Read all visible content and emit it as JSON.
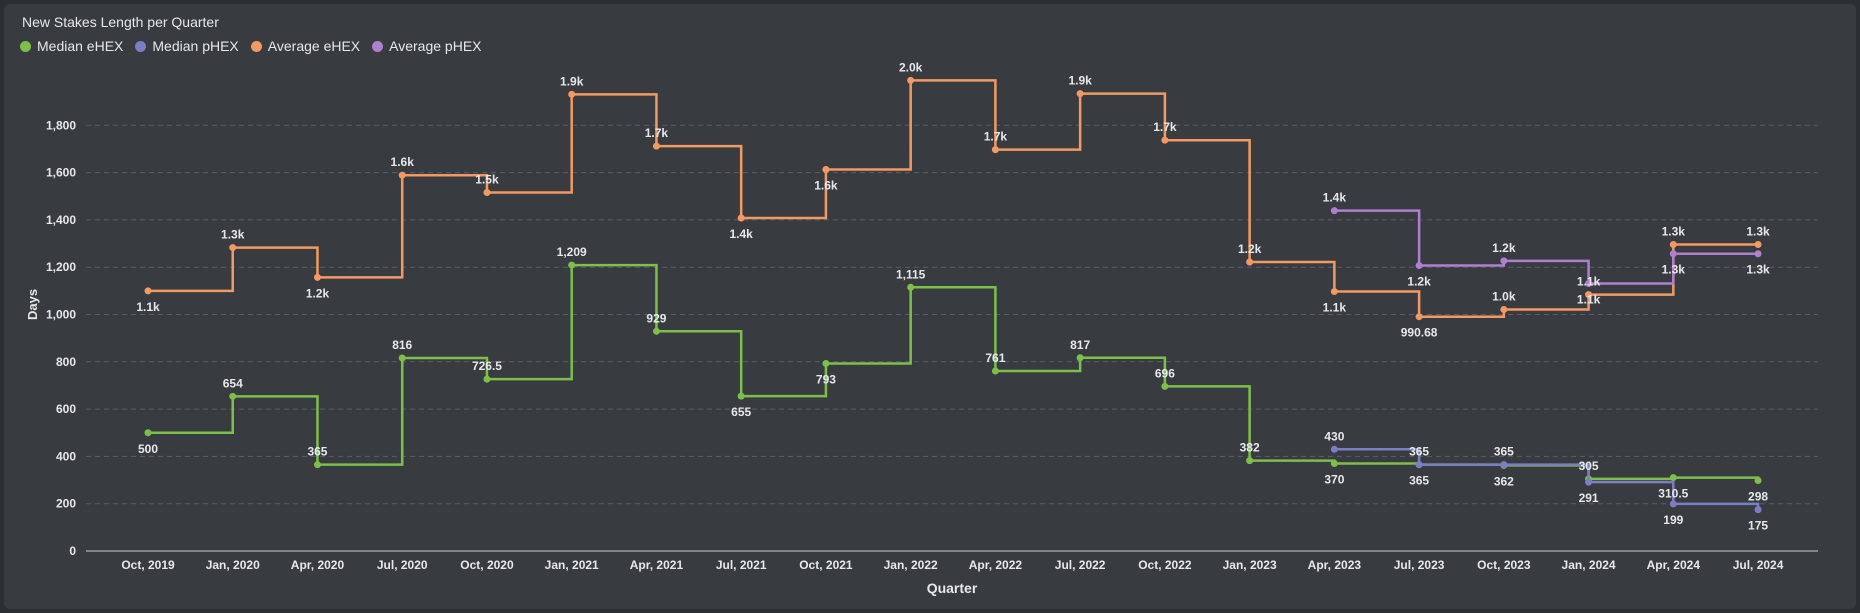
{
  "colors": {
    "background": "#383c41",
    "grid": "#5a5f66",
    "axis": "#c8ccd0",
    "text": "#e6e8ea"
  },
  "chart_data": {
    "type": "line",
    "step": true,
    "title": "New Stakes Length per Quarter",
    "xlabel": "Quarter",
    "ylabel": "Days",
    "ylim": [
      0,
      2000
    ],
    "yticks": [
      0,
      200,
      400,
      600,
      800,
      1000,
      1200,
      1400,
      1600,
      1800
    ],
    "ytick_labels": [
      "0",
      "200",
      "400",
      "600",
      "800",
      "1,000",
      "1,200",
      "1,400",
      "1,600",
      "1,800"
    ],
    "grid": true,
    "legend_position": "top-left",
    "categories": [
      "Oct, 2019",
      "Jan, 2020",
      "Apr, 2020",
      "Jul, 2020",
      "Oct, 2020",
      "Jan, 2021",
      "Apr, 2021",
      "Jul, 2021",
      "Oct, 2021",
      "Jan, 2022",
      "Apr, 2022",
      "Jul, 2022",
      "Oct, 2022",
      "Jan, 2023",
      "Apr, 2023",
      "Jul, 2023",
      "Oct, 2023",
      "Jan, 2024",
      "Apr, 2024",
      "Jul, 2024"
    ],
    "series": [
      {
        "name": "Median eHEX",
        "color": "#7cc04a",
        "values": [
          500,
          654,
          365,
          816,
          726.5,
          1209,
          929,
          655,
          793,
          1115,
          761,
          817,
          696,
          382,
          370,
          365,
          362,
          305,
          310.5,
          298
        ],
        "labels": [
          "500",
          "654",
          "365",
          "816",
          "726.5",
          "1,209",
          "929",
          "655",
          "793",
          "1,115",
          "761",
          "817",
          "696",
          "382",
          "370",
          "365",
          "362",
          "305",
          "310.5",
          "298"
        ],
        "label_pos": [
          "below",
          "above",
          "above",
          "above",
          "above",
          "above",
          "above",
          "below",
          "below",
          "above",
          "above",
          "above",
          "above",
          "above",
          "below",
          "below",
          "below",
          "above",
          "below",
          "below"
        ]
      },
      {
        "name": "Median pHEX",
        "color": "#7b7ec4",
        "values": [
          null,
          null,
          null,
          null,
          null,
          null,
          null,
          null,
          null,
          null,
          null,
          null,
          null,
          null,
          430,
          365,
          365,
          291,
          199,
          175
        ],
        "labels": [
          "",
          "",
          "",
          "",
          "",
          "",
          "",
          "",
          "",
          "",
          "",
          "",
          "",
          "",
          "430",
          "365",
          "365",
          "291",
          "199",
          "175"
        ],
        "label_pos": [
          "",
          "",
          "",
          "",
          "",
          "",
          "",
          "",
          "",
          "",
          "",
          "",
          "",
          "",
          "above",
          "above",
          "above",
          "below",
          "below",
          "below"
        ]
      },
      {
        "name": "Average eHEX",
        "color": "#f29a62",
        "values": [
          1100,
          1283,
          1157,
          1589,
          1516,
          1931,
          1712,
          1408,
          1613,
          1990,
          1697,
          1934,
          1737,
          1222,
          1097,
          990.68,
          1021,
          1084,
          1296,
          1296
        ],
        "labels": [
          "1.1k",
          "1.3k",
          "1.2k",
          "1.6k",
          "1.5k",
          "1.9k",
          "1.7k",
          "1.4k",
          "1.6k",
          "2.0k",
          "1.7k",
          "1.9k",
          "1.7k",
          "1.2k",
          "1.1k",
          "990.68",
          "1.0k",
          "1.1k",
          "1.3k",
          "1.3k"
        ],
        "label_pos": [
          "below",
          "above",
          "below",
          "above",
          "above",
          "above",
          "above",
          "below",
          "below",
          "above",
          "above",
          "above",
          "above",
          "above",
          "below",
          "below",
          "above",
          "above",
          "above",
          "above"
        ]
      },
      {
        "name": "Average pHEX",
        "color": "#b07fd0",
        "values": [
          null,
          null,
          null,
          null,
          null,
          null,
          null,
          null,
          null,
          null,
          null,
          null,
          null,
          null,
          1439,
          1207,
          1227,
          1131,
          1257,
          1257
        ],
        "labels": [
          "",
          "",
          "",
          "",
          "",
          "",
          "",
          "",
          "",
          "",
          "",
          "",
          "",
          "",
          "1.4k",
          "1.2k",
          "1.2k",
          "1.1k",
          "1.3k",
          "1.3k"
        ],
        "label_pos": [
          "",
          "",
          "",
          "",
          "",
          "",
          "",
          "",
          "",
          "",
          "",
          "",
          "",
          "",
          "above",
          "below",
          "above",
          "below",
          "below",
          "below"
        ]
      }
    ]
  }
}
